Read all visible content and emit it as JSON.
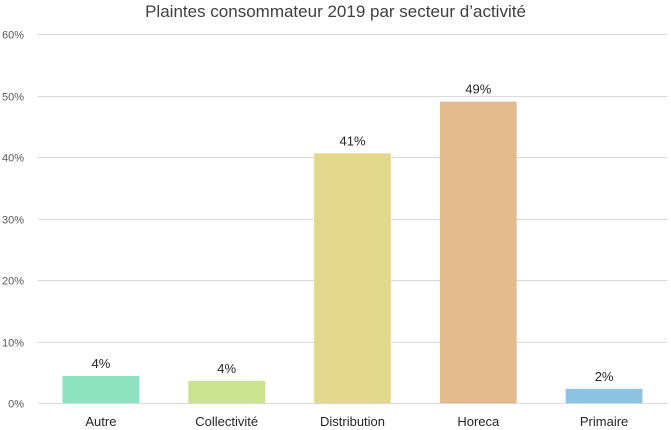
{
  "chart_data": {
    "type": "bar",
    "title": "Plaintes consommateur 2019 par secteur d’activité",
    "xlabel": "",
    "ylabel": "",
    "categories": [
      "Autre",
      "Collectivité",
      "Distribution",
      "Horeca",
      "Primaire"
    ],
    "values": [
      4.4,
      3.6,
      40.6,
      49.0,
      2.3
    ],
    "data_labels": [
      "4%",
      "4%",
      "41%",
      "49%",
      "2%"
    ],
    "colors": [
      "#8ee3c0",
      "#c9e38e",
      "#e2d98e",
      "#e3b98e",
      "#8ec3e3"
    ],
    "ylim": [
      0,
      60
    ],
    "yticks": [
      0,
      10,
      20,
      30,
      40,
      50,
      60
    ],
    "ytick_labels": [
      "0%",
      "10%",
      "20%",
      "30%",
      "40%",
      "50%",
      "60%"
    ],
    "grid": true,
    "legend": "none"
  }
}
